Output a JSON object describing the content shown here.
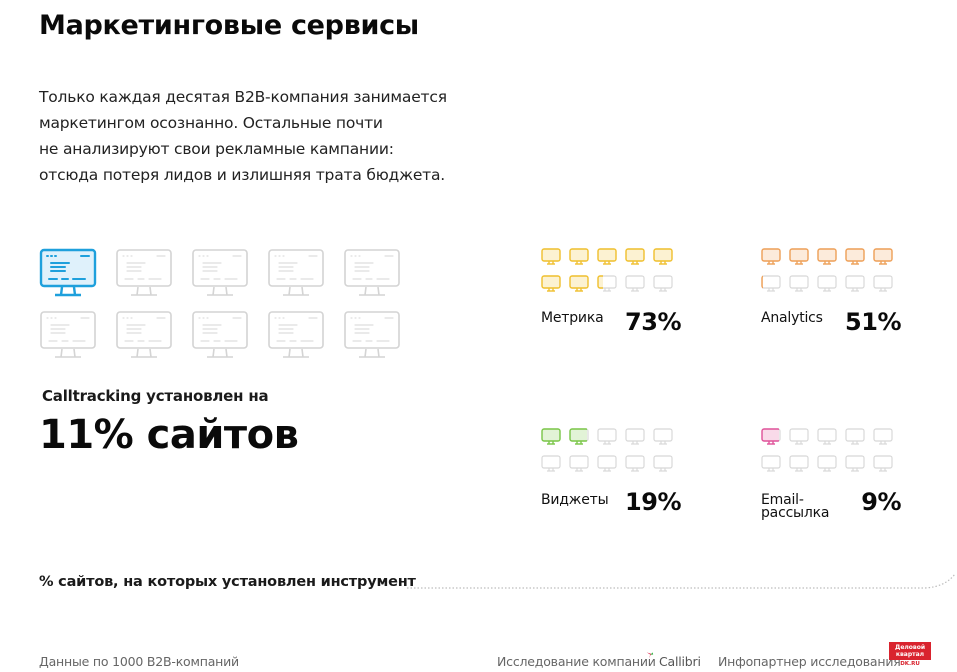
{
  "title": "Маркетинговые сервисы",
  "intro_lines": [
    "Только каждая десятая B2B-компания занимается",
    "маркетингом осознанно. Остальные почти",
    "не анализируют свои рекламные кампании:",
    "отсюда потеря лидов и излишняя трата бюджета."
  ],
  "calltracking": {
    "label": "Calltracking установлен на",
    "value": "11% сайтов",
    "highlighted_count": 1,
    "total_icons": 10,
    "color": "#1ea0dc"
  },
  "tools": [
    {
      "name": "Метрика",
      "value": "73%",
      "color": "#f2c230",
      "filled": 7.3
    },
    {
      "name": "Analytics",
      "value": "51%",
      "color": "#f0a25a",
      "filled": 5.1
    },
    {
      "name": "Виджеты",
      "value": "19%",
      "color": "#7cc84a",
      "filled": 1.9
    },
    {
      "name": "Email-\nрассылка",
      "name_lines": [
        "Email-",
        "рассылка"
      ],
      "value": "9%",
      "color": "#e2559c",
      "filled": 0.9
    }
  ],
  "legend": "% сайтов, на которых установлен инструмент",
  "footer": {
    "source": "Данные по 1000 B2B-компаний",
    "research_by": "Исследование компании",
    "research_company": "Callibri",
    "partner_label": "Инфопартнер исследования",
    "partner_logo_line1": "Деловой",
    "partner_logo_line2": "квартал",
    "partner_logo_url": "DK.RU"
  },
  "chart_data": {
    "type": "pictogram",
    "title": "Маркетинговые сервисы",
    "subtitle": "% сайтов, на которых установлен инструмент",
    "units": "%",
    "categories": [
      "Calltracking",
      "Метрика",
      "Analytics",
      "Виджеты",
      "Email-рассылка"
    ],
    "values": [
      11,
      73,
      51,
      19,
      9
    ],
    "colors": [
      "#1ea0dc",
      "#f2c230",
      "#f0a25a",
      "#7cc84a",
      "#e2559c"
    ],
    "icons_per_chart": 10,
    "note": "Данные по 1000 B2B-компаний"
  }
}
